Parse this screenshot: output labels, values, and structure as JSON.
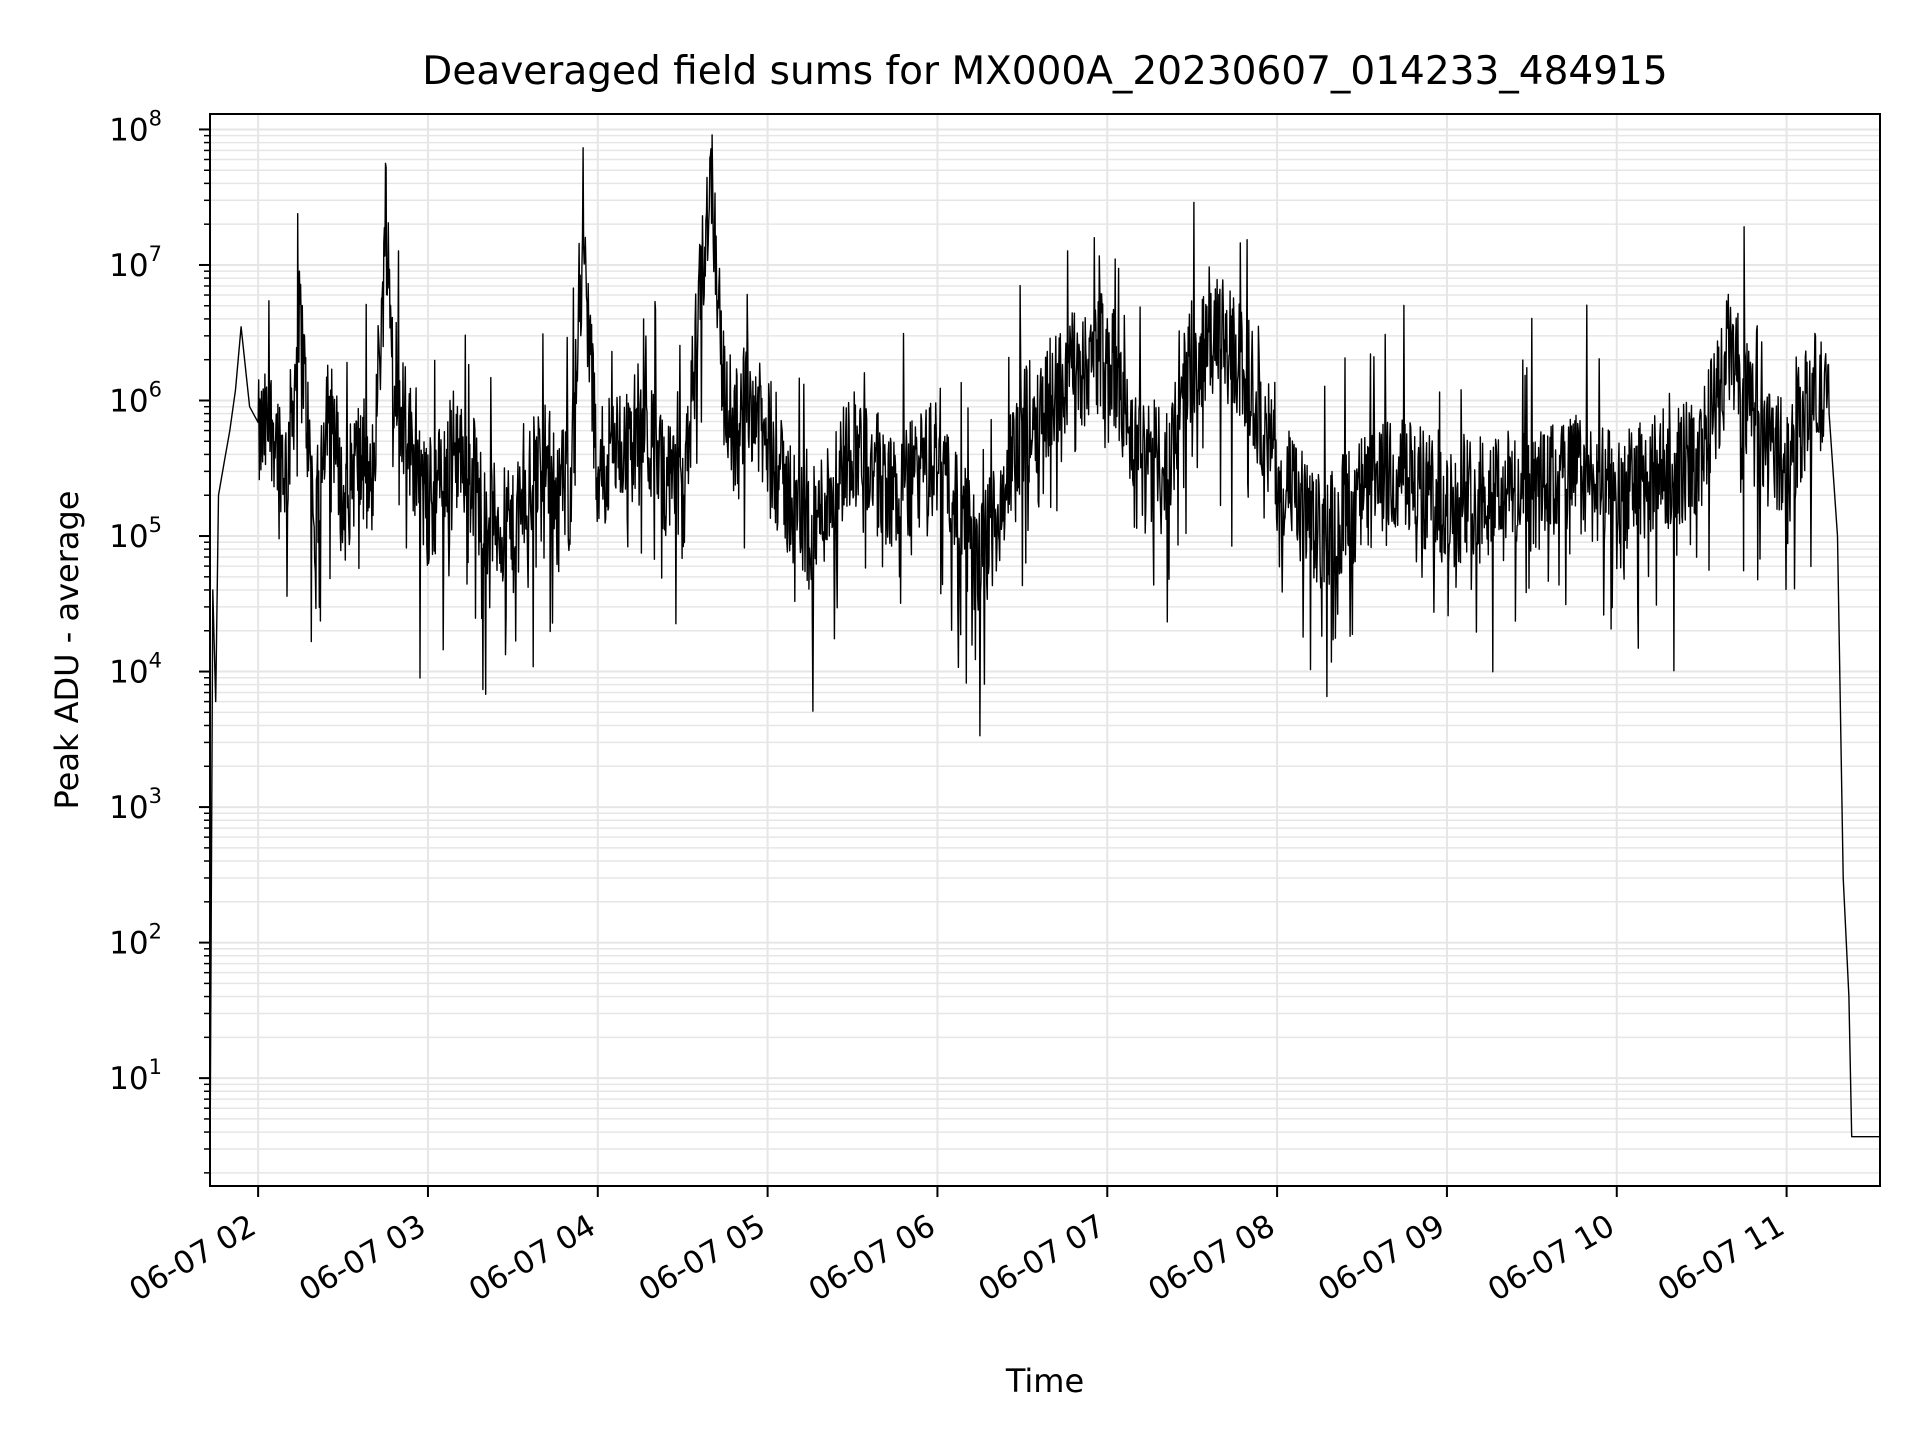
{
  "chart_data": {
    "type": "line",
    "title": "Deaveraged field sums for MX000A_20230607_014233_484915",
    "xlabel": "Time",
    "ylabel": "Peak ADU - average",
    "yscale": "log",
    "ylim": [
      1.6,
      130000000
    ],
    "xlim": [
      "2023-06-07 01:43",
      "2023-06-07 11:33"
    ],
    "grid": true,
    "grid_color": "#e6e6e6",
    "line_color": "#000000",
    "x_ticks": [
      {
        "time": "2023-06-07 02:00",
        "label": "06-07 02"
      },
      {
        "time": "2023-06-07 03:00",
        "label": "06-07 03"
      },
      {
        "time": "2023-06-07 04:00",
        "label": "06-07 04"
      },
      {
        "time": "2023-06-07 05:00",
        "label": "06-07 05"
      },
      {
        "time": "2023-06-07 06:00",
        "label": "06-07 06"
      },
      {
        "time": "2023-06-07 07:00",
        "label": "06-07 07"
      },
      {
        "time": "2023-06-07 08:00",
        "label": "06-07 08"
      },
      {
        "time": "2023-06-07 09:00",
        "label": "06-07 09"
      },
      {
        "time": "2023-06-07 10:00",
        "label": "06-07 10"
      },
      {
        "time": "2023-06-07 11:00",
        "label": "06-07 11"
      }
    ],
    "y_ticks": [
      {
        "value": 10,
        "base": "10",
        "exp": "1"
      },
      {
        "value": 100,
        "base": "10",
        "exp": "2"
      },
      {
        "value": 1000,
        "base": "10",
        "exp": "3"
      },
      {
        "value": 10000,
        "base": "10",
        "exp": "4"
      },
      {
        "value": 100000,
        "base": "10",
        "exp": "5"
      },
      {
        "value": 1000000,
        "base": "10",
        "exp": "6"
      },
      {
        "value": 10000000,
        "base": "10",
        "exp": "7"
      },
      {
        "value": 100000000,
        "base": "10",
        "exp": "8"
      }
    ],
    "series": [
      {
        "points": [
          [
            "2023-06-07 01:43",
            2
          ],
          [
            "2023-06-07 01:44",
            40000
          ],
          [
            "2023-06-07 01:45",
            6000
          ],
          [
            "2023-06-07 01:46",
            200000
          ],
          [
            "2023-06-07 01:48",
            350000
          ],
          [
            "2023-06-07 01:50",
            600000
          ],
          [
            "2023-06-07 01:52",
            1200000
          ],
          [
            "2023-06-07 01:54",
            3500000
          ],
          [
            "2023-06-07 01:57",
            900000
          ],
          [
            "2023-06-07 02:00",
            500000
          ],
          [
            "2023-06-07 02:05",
            700000
          ],
          [
            "2023-06-07 02:10",
            300000
          ],
          [
            "2023-06-07 02:15",
            4000000
          ],
          [
            "2023-06-07 02:20",
            100000
          ],
          [
            "2023-06-07 02:25",
            1500000
          ],
          [
            "2023-06-07 02:30",
            150000
          ],
          [
            "2023-06-07 02:35",
            400000
          ],
          [
            "2023-06-07 02:40",
            200000
          ],
          [
            "2023-06-07 02:45",
            13000000
          ],
          [
            "2023-06-07 02:50",
            1000000
          ],
          [
            "2023-06-07 02:55",
            400000
          ],
          [
            "2023-06-07 03:00",
            150000
          ],
          [
            "2023-06-07 03:10",
            500000
          ],
          [
            "2023-06-07 03:20",
            150000
          ],
          [
            "2023-06-07 03:30",
            100000
          ],
          [
            "2023-06-07 03:40",
            400000
          ],
          [
            "2023-06-07 03:50",
            200000
          ],
          [
            "2023-06-07 03:55",
            13000000
          ],
          [
            "2023-06-07 04:00",
            300000
          ],
          [
            "2023-06-07 04:15",
            700000
          ],
          [
            "2023-06-07 04:30",
            150000
          ],
          [
            "2023-06-07 04:40",
            55000000
          ],
          [
            "2023-06-07 04:45",
            800000
          ],
          [
            "2023-06-07 04:55",
            1000000
          ],
          [
            "2023-06-07 05:00",
            400000
          ],
          [
            "2023-06-07 05:15",
            100000
          ],
          [
            "2023-06-07 05:30",
            500000
          ],
          [
            "2023-06-07 05:45",
            200000
          ],
          [
            "2023-06-07 06:00",
            400000
          ],
          [
            "2023-06-07 06:15",
            60000
          ],
          [
            "2023-06-07 06:30",
            600000
          ],
          [
            "2023-06-07 06:45",
            1500000
          ],
          [
            "2023-06-07 07:00",
            2500000
          ],
          [
            "2023-06-07 07:10",
            400000
          ],
          [
            "2023-06-07 07:20",
            300000
          ],
          [
            "2023-06-07 07:30",
            2000000
          ],
          [
            "2023-06-07 07:40",
            3000000
          ],
          [
            "2023-06-07 07:50",
            1500000
          ],
          [
            "2023-06-07 08:00",
            300000
          ],
          [
            "2023-06-07 08:15",
            100000
          ],
          [
            "2023-06-07 08:30",
            200000
          ],
          [
            "2023-06-07 08:45",
            300000
          ],
          [
            "2023-06-07 09:00",
            150000
          ],
          [
            "2023-06-07 09:15",
            250000
          ],
          [
            "2023-06-07 09:30",
            200000
          ],
          [
            "2023-06-07 09:45",
            300000
          ],
          [
            "2023-06-07 10:00",
            200000
          ],
          [
            "2023-06-07 10:15",
            300000
          ],
          [
            "2023-06-07 10:30",
            400000
          ],
          [
            "2023-06-07 10:40",
            2500000
          ],
          [
            "2023-06-07 10:50",
            500000
          ],
          [
            "2023-06-07 11:00",
            400000
          ],
          [
            "2023-06-07 11:10",
            1200000
          ],
          [
            "2023-06-07 11:15",
            800000
          ],
          [
            "2023-06-07 11:18",
            100000
          ],
          [
            "2023-06-07 11:20",
            300
          ],
          [
            "2023-06-07 11:22",
            40
          ],
          [
            "2023-06-07 11:23",
            3.7
          ],
          [
            "2023-06-07 11:33",
            3.7
          ]
        ]
      }
    ]
  }
}
